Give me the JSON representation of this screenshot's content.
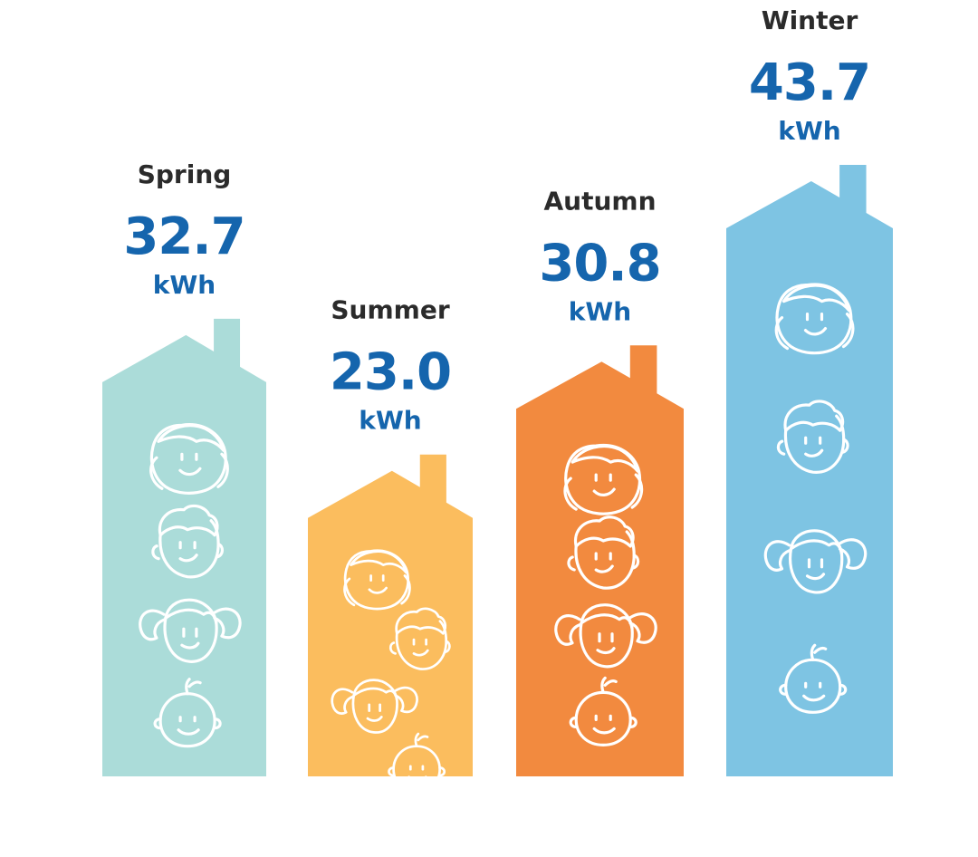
{
  "chart_data": {
    "type": "bar",
    "categories": [
      "Spring",
      "Summer",
      "Autumn",
      "Winter"
    ],
    "values": [
      32.7,
      23.0,
      30.8,
      43.7
    ],
    "value_labels": [
      "32.7",
      "23.0",
      "30.8",
      "43.7"
    ],
    "unit": "kWh",
    "title": "",
    "xlabel": "",
    "ylabel": "",
    "ylim": [
      0,
      43.7
    ],
    "grid": false,
    "legend": "none",
    "bar_shape": "house",
    "colors": [
      "#abdcd9",
      "#fbbd5e",
      "#f28a3f",
      "#7ec4e3"
    ]
  },
  "style": {
    "value_color": "#1565ad",
    "label_color": "#2b2b2b",
    "icon_color": "#ffffff"
  },
  "icons": {
    "face_icons": [
      "mother-face-icon",
      "father-face-icon",
      "girl-face-icon",
      "baby-face-icon"
    ]
  }
}
